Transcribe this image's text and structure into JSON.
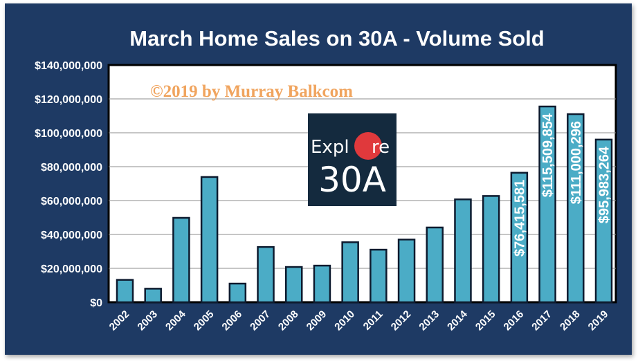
{
  "chart_data": {
    "type": "bar",
    "title": "March Home Sales on 30A - Volume Sold",
    "xlabel": "",
    "ylabel": "",
    "categories": [
      "2002",
      "2003",
      "2004",
      "2005",
      "2006",
      "2007",
      "2008",
      "2009",
      "2010",
      "2011",
      "2012",
      "2013",
      "2014",
      "2015",
      "2016",
      "2017",
      "2018",
      "2019"
    ],
    "values": [
      13200000,
      8000000,
      49800000,
      73900000,
      11000000,
      32600000,
      20800000,
      21600000,
      35400000,
      31000000,
      37000000,
      44100000,
      60700000,
      62700000,
      76415581,
      115509854,
      111000296,
      95983264
    ],
    "ylim": [
      0,
      140000000
    ],
    "yticks": [
      0,
      20000000,
      40000000,
      60000000,
      80000000,
      100000000,
      120000000,
      140000000
    ],
    "ytick_labels": [
      "$0",
      "$20,000,000",
      "$40,000,000",
      "$60,000,000",
      "$80,000,000",
      "$100,000,000",
      "$120,000,000",
      "$140,000,000"
    ],
    "data_labels": [
      {
        "category": "2016",
        "text": "$76,415,581"
      },
      {
        "category": "2017",
        "text": "$115,509,854"
      },
      {
        "category": "2018",
        "text": "$111,000,296"
      },
      {
        "category": "2019",
        "text": "$95,983,264"
      }
    ],
    "grid": true,
    "bar_color": "#4bacc6",
    "bar_edge_color": "#0d1a2e",
    "background_color": "#1e3a64",
    "plot_background": "#ffffff",
    "watermark": "©2019 by Murray Balkcom",
    "logo": {
      "line1_a": "Expl",
      "line1_b": "re",
      "line2": "30A",
      "accent_color": "#e0393c",
      "background_color": "#142a3e"
    }
  }
}
